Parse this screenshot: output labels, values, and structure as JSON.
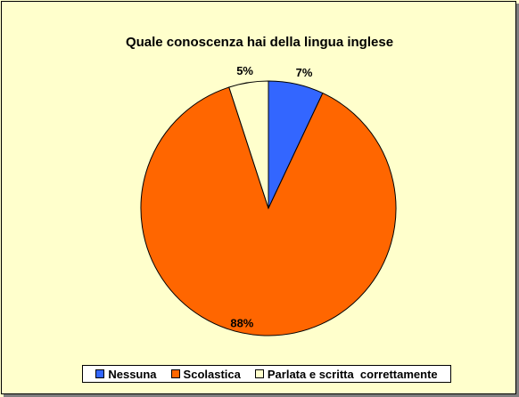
{
  "chart_data": {
    "type": "pie",
    "title": "Quale conoscenza hai della lingua inglese",
    "slices": [
      {
        "label": "Nessuna",
        "value": 7,
        "display": "7%",
        "color": "#3366ff"
      },
      {
        "label": "Scolastica",
        "value": 88,
        "display": "88%",
        "color": "#ff6600"
      },
      {
        "label": "Parlata e scritta  correttamente",
        "value": 5,
        "display": "5%",
        "color": "#ffffcc"
      }
    ],
    "legend_position": "bottom"
  }
}
